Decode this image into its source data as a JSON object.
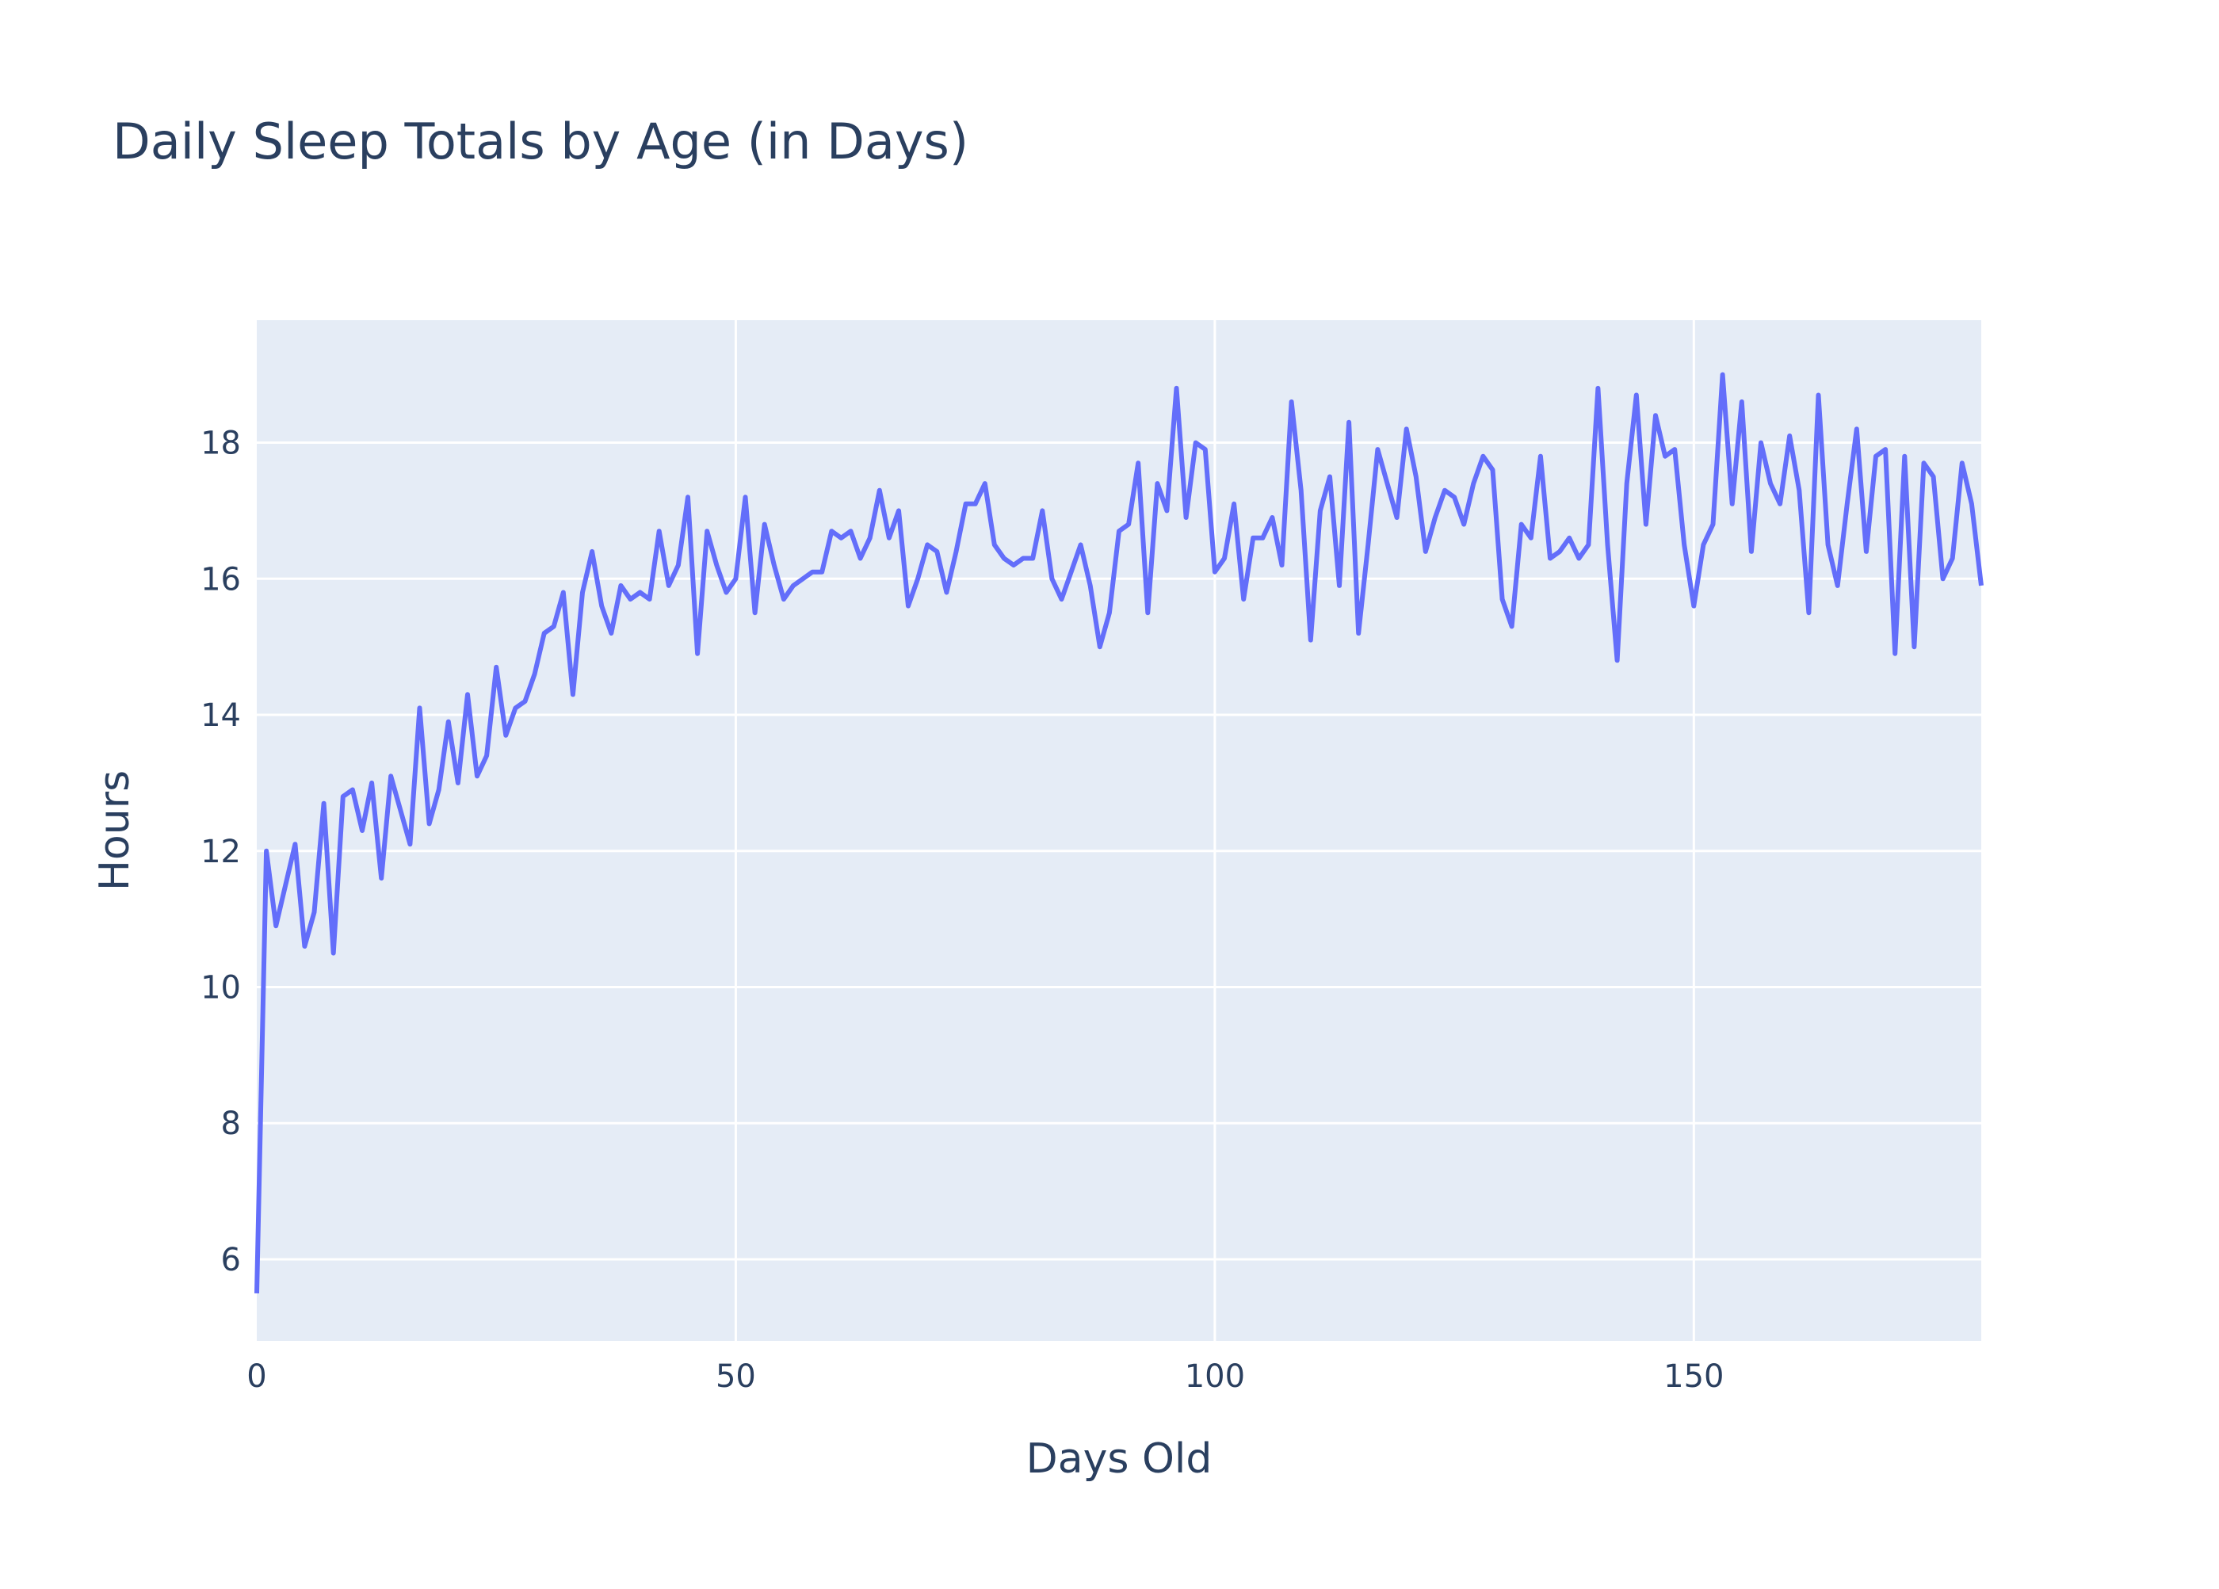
{
  "chart_data": {
    "type": "line",
    "title": "Daily Sleep Totals by Age (in Days)",
    "xlabel": "Days Old",
    "ylabel": "Hours",
    "xlim": [
      0,
      180
    ],
    "ylim": [
      4.8,
      19.8
    ],
    "xticks": [
      0,
      50,
      100,
      150
    ],
    "yticks": [
      6,
      8,
      10,
      12,
      14,
      16,
      18
    ],
    "grid": true,
    "legend": "none",
    "colors": {
      "line": "#636efa",
      "plot_bg": "#e5ecf6",
      "grid": "#ffffff",
      "text": "#2a3f5f"
    },
    "series": [
      {
        "values": [
          5.5,
          12.0,
          10.9,
          11.5,
          12.1,
          10.6,
          11.1,
          12.7,
          10.5,
          12.8,
          12.9,
          12.3,
          13.0,
          11.6,
          13.1,
          12.6,
          12.1,
          14.1,
          12.4,
          12.9,
          13.9,
          13.0,
          14.3,
          13.1,
          13.4,
          14.7,
          13.7,
          14.1,
          14.2,
          14.6,
          15.2,
          15.3,
          15.8,
          14.3,
          15.8,
          16.4,
          15.6,
          15.2,
          15.9,
          15.7,
          15.8,
          15.7,
          16.7,
          15.9,
          16.2,
          17.2,
          14.9,
          16.7,
          16.2,
          15.8,
          16.0,
          17.2,
          15.5,
          16.8,
          16.2,
          15.7,
          15.9,
          16.0,
          16.1,
          16.1,
          16.7,
          16.6,
          16.7,
          16.3,
          16.6,
          17.3,
          16.6,
          17.0,
          15.6,
          16.0,
          16.5,
          16.4,
          15.8,
          16.4,
          17.1,
          17.1,
          17.4,
          16.5,
          16.3,
          16.2,
          16.3,
          16.3,
          17.0,
          16.0,
          15.7,
          16.1,
          16.5,
          15.9,
          15.0,
          15.5,
          16.7,
          16.8,
          17.7,
          15.5,
          17.4,
          17.0,
          18.8,
          16.9,
          18.0,
          17.9,
          16.1,
          16.3,
          17.1,
          15.7,
          16.6,
          16.6,
          16.9,
          16.2,
          18.6,
          17.3,
          15.1,
          17.0,
          17.5,
          15.9,
          18.3,
          15.2,
          16.5,
          17.9,
          17.4,
          16.9,
          18.2,
          17.5,
          16.4,
          16.9,
          17.3,
          17.2,
          16.8,
          17.4,
          17.8,
          17.6,
          15.7,
          15.3,
          16.8,
          16.6,
          17.8,
          16.3,
          16.4,
          16.6,
          16.3,
          16.5,
          18.8,
          16.5,
          14.8,
          17.4,
          18.7,
          16.8,
          18.4,
          17.8,
          17.9,
          16.5,
          15.6,
          16.5,
          16.8,
          19.0,
          17.1,
          18.6,
          16.4,
          18.0,
          17.4,
          17.1,
          18.1,
          17.3,
          15.5,
          18.7,
          16.5,
          15.9,
          17.1,
          18.2,
          16.4,
          17.8,
          17.9,
          14.9,
          17.8,
          15.0,
          17.7,
          17.5,
          16.0,
          16.3,
          17.7,
          17.1,
          15.9
        ]
      }
    ]
  }
}
